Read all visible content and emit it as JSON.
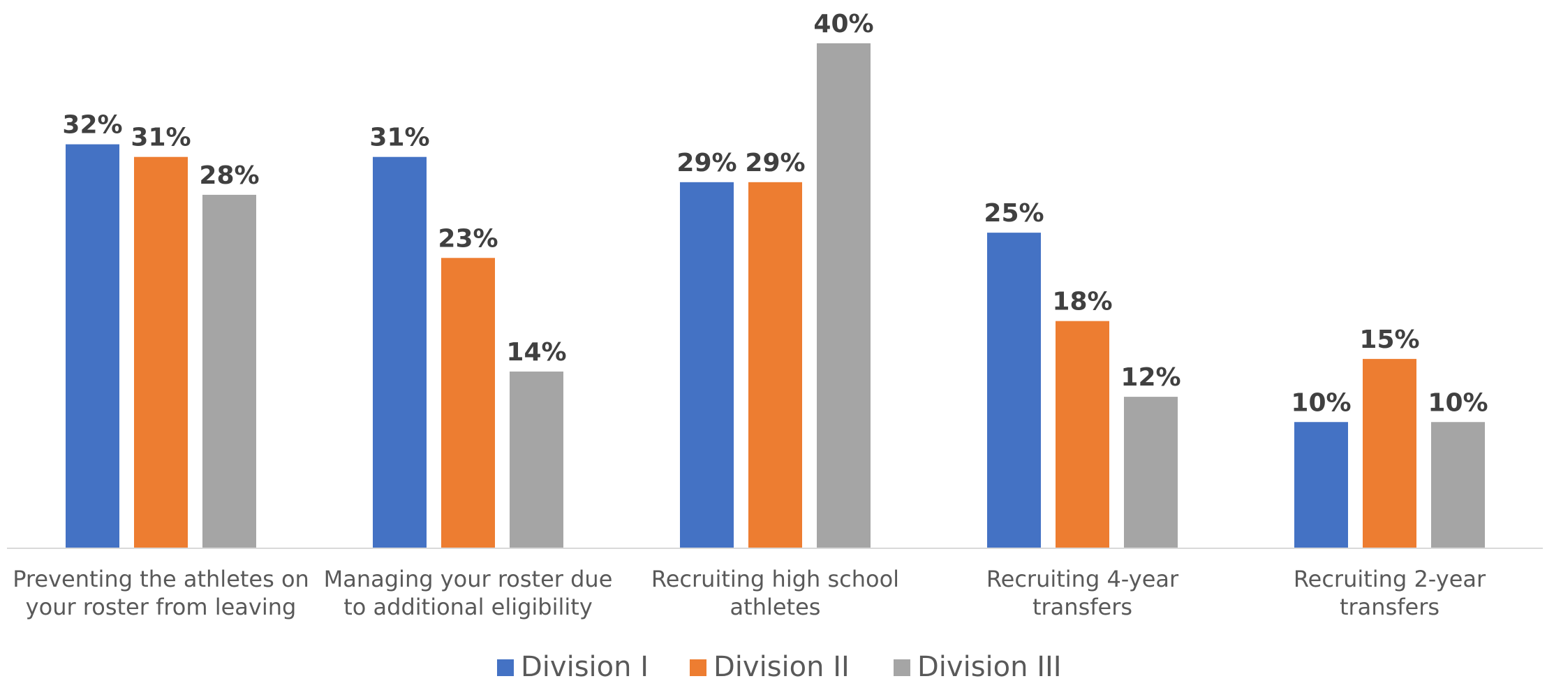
{
  "chart_data": {
    "type": "bar",
    "categories": [
      [
        "Preventing the athletes on",
        "your roster from leaving"
      ],
      [
        "Managing your roster due",
        "to additional eligibility"
      ],
      [
        "Recruiting high school",
        "athletes"
      ],
      [
        "Recruiting 4-year",
        "transfers"
      ],
      [
        "Recruiting 2-year",
        "transfers"
      ]
    ],
    "series": [
      {
        "name": "Division I",
        "color": "#4472C4",
        "values": [
          32,
          31,
          29,
          25,
          10
        ],
        "labels": [
          "32%",
          "31%",
          "29%",
          "25%",
          "10%"
        ]
      },
      {
        "name": "Division II",
        "color": "#ED7D31",
        "values": [
          31,
          23,
          29,
          18,
          15
        ],
        "labels": [
          "31%",
          "23%",
          "29%",
          "18%",
          "15%"
        ]
      },
      {
        "name": "Division III",
        "color": "#A5A5A5",
        "values": [
          28,
          14,
          40,
          12,
          10
        ],
        "labels": [
          "28%",
          "14%",
          "40%",
          "12%",
          "10%"
        ]
      }
    ],
    "ylim": [
      0,
      40
    ],
    "grid": false,
    "legend_position": "bottom",
    "data_labels": true
  }
}
